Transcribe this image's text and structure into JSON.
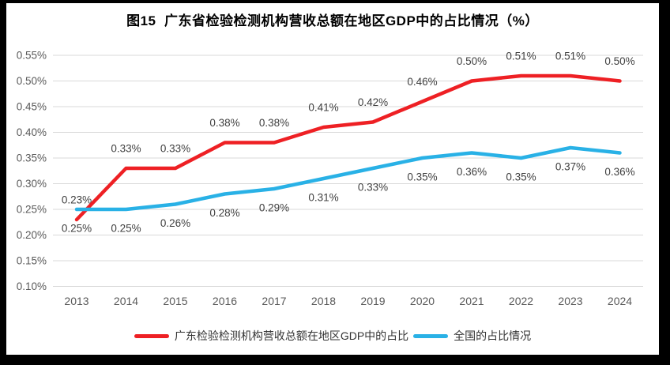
{
  "title": "图15  广东省检验检测机构营收总额在地区GDP中的占比情况（%）",
  "colors": {
    "frame": "#000000",
    "background": "#ffffff",
    "gridline": "#d9d9d9",
    "axis_text": "#595959",
    "data_label_text": "#404040",
    "guangdong_red": "#ee2024",
    "national_blue": "#29b1e6"
  },
  "chart_data": {
    "type": "line",
    "title": "图15  广东省检验检测机构营收总额在地区GDP中的占比情况（%）",
    "x": [
      "2013",
      "2014",
      "2015",
      "2016",
      "2017",
      "2018",
      "2019",
      "2020",
      "2021",
      "2022",
      "2023",
      "2024"
    ],
    "unit": "%",
    "ylim": [
      0.1,
      0.55
    ],
    "ytick_step": 0.05,
    "yticks": [
      "0.55%",
      "0.50%",
      "0.45%",
      "0.40%",
      "0.35%",
      "0.30%",
      "0.25%",
      "0.20%",
      "0.15%",
      "0.10%"
    ],
    "grid": true,
    "legend_position": "bottom",
    "series": [
      {
        "name": "广东检验检测机构营收总额在地区GDP中的占比",
        "color": "#ee2024",
        "label_side": "above",
        "values": [
          0.23,
          0.33,
          0.33,
          0.38,
          0.38,
          0.41,
          0.42,
          0.46,
          0.5,
          0.51,
          0.51,
          0.5
        ],
        "labels": [
          "0.23%",
          "0.33%",
          "0.33%",
          "0.38%",
          "0.38%",
          "0.41%",
          "0.42%",
          "0.46%",
          "0.50%",
          "0.51%",
          "0.51%",
          "0.50%"
        ]
      },
      {
        "name": "全国的占比情况",
        "color": "#29b1e6",
        "label_side": "below",
        "values": [
          0.25,
          0.25,
          0.26,
          0.28,
          0.29,
          0.31,
          0.33,
          0.35,
          0.36,
          0.35,
          0.37,
          0.36
        ],
        "labels": [
          "0.25%",
          "0.25%",
          "0.26%",
          "0.28%",
          "0.29%",
          "0.31%",
          "0.33%",
          "0.35%",
          "0.36%",
          "0.35%",
          "0.37%",
          "0.36%"
        ]
      }
    ]
  },
  "legend": {
    "items": [
      {
        "label": "广东检验检测机构营收总额在地区GDP中的占比",
        "color": "#ee2024",
        "swatch": "red-line-swatch"
      },
      {
        "label": "全国的占比情况",
        "color": "#29b1e6",
        "swatch": "blue-line-swatch"
      }
    ]
  }
}
